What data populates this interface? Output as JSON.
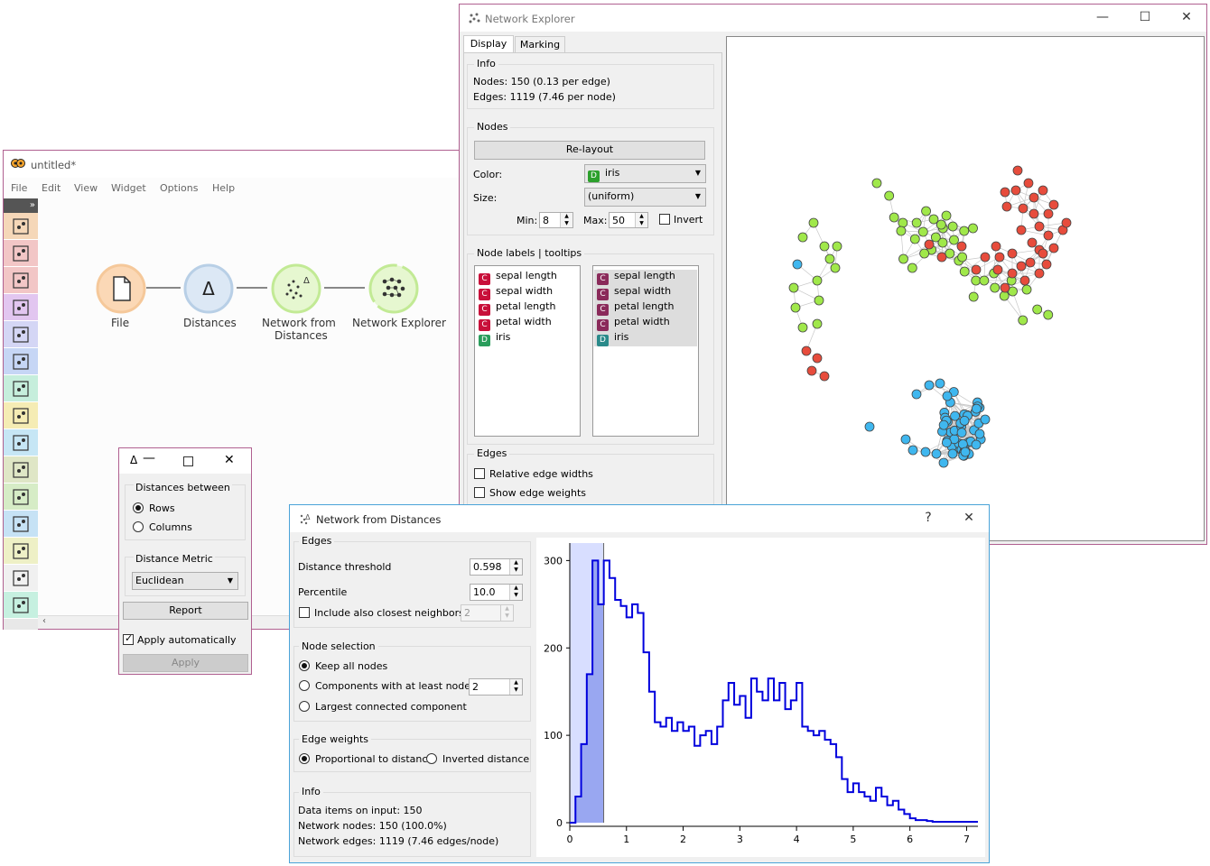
{
  "colors": {
    "red": "#e74c3c",
    "green": "#a0e84a",
    "blue": "#3fb7ef",
    "histogram": "#0000dd",
    "selection": "#c8d0ff"
  },
  "orange_window": {
    "title": "untitled*",
    "menu": [
      "File",
      "Edit",
      "View",
      "Widget",
      "Options",
      "Help"
    ],
    "toolbox_icons": [
      "table-icon",
      "scatter-icon",
      "tree-icon",
      "scatter-dense-icon",
      "heatmap-icon",
      "cluster-icon",
      "painter-icon",
      "image-icon",
      "star-icon",
      "pipeline-icon",
      "education-icon",
      "line-chart-icon",
      "transform-icon",
      "text-icon",
      "network-icon"
    ],
    "nodes": [
      {
        "label": "File",
        "icon": "file-icon"
      },
      {
        "label": "Distances",
        "icon": "delta-icon"
      },
      {
        "label_line1": "Network from",
        "label_line2": "Distances",
        "icon": "network-from-distances-icon"
      },
      {
        "label": "Network Explorer",
        "icon": "network-explorer-icon"
      }
    ]
  },
  "distances_window": {
    "title_icon": "Δ",
    "group_between": "Distances between",
    "rows": "Rows",
    "columns": "Columns",
    "group_metric": "Distance Metric",
    "metric": "Euclidean",
    "report": "Report",
    "apply_auto": "Apply automatically",
    "apply": "Apply"
  },
  "explorer_window": {
    "title": "Network Explorer",
    "tabs": [
      "Display",
      "Marking"
    ],
    "info_title": "Info",
    "nodes_info": "Nodes: 150 (0.13 per edge)",
    "edges_info": "Edges: 1119 (7.46 per node)",
    "nodes_group": "Nodes",
    "relayout": "Re-layout",
    "color_label": "Color:",
    "color_value": "iris",
    "size_label": "Size:",
    "size_value": "(uniform)",
    "min_label": "Min:",
    "min_value": "8",
    "max_label": "Max:",
    "max_value": "50",
    "invert": "Invert",
    "node_labels_title": "Node labels | tooltips",
    "attributes": [
      {
        "type": "C",
        "name": "sepal length"
      },
      {
        "type": "C",
        "name": "sepal width"
      },
      {
        "type": "C",
        "name": "petal length"
      },
      {
        "type": "C",
        "name": "petal width"
      },
      {
        "type": "D",
        "name": "iris"
      }
    ],
    "edges_group": "Edges",
    "relative_edge_widths": "Relative edge widths",
    "show_edge_weights": "Show edge weights"
  },
  "nfd_window": {
    "title": "Network from Distances",
    "help": "?",
    "close": "✕",
    "edges_group": "Edges",
    "threshold_label": "Distance threshold",
    "threshold_value": "0.598",
    "percentile_label": "Percentile",
    "percentile_value": "10.0",
    "closest_label": "Include also closest neighbors",
    "closest_value": "2",
    "node_selection": "Node selection",
    "keep_all": "Keep all nodes",
    "components": "Components with at least nodes",
    "components_value": "2",
    "largest": "Largest connected component",
    "edge_weights": "Edge weights",
    "proportional": "Proportional to distance",
    "inverted": "Inverted distance",
    "info_title": "Info",
    "info_items": "Data items on input: 150",
    "info_nodes": "Network nodes: 150 (100.0%)",
    "info_edges": "Network edges: 1119 (7.46 edges/node)"
  },
  "chart_data": {
    "type": "line",
    "x_ticks": [
      "0",
      "1",
      "2",
      "3",
      "4",
      "5",
      "6",
      "7"
    ],
    "y_ticks": [
      "0",
      "100",
      "200",
      "300"
    ],
    "xlim": [
      0,
      7.2
    ],
    "ylim": [
      0,
      320
    ],
    "threshold": 0.598,
    "x": [
      0,
      0.1,
      0.2,
      0.3,
      0.4,
      0.5,
      0.6,
      0.7,
      0.8,
      0.9,
      1.0,
      1.1,
      1.2,
      1.3,
      1.4,
      1.5,
      1.6,
      1.7,
      1.8,
      1.9,
      2.0,
      2.1,
      2.2,
      2.3,
      2.4,
      2.5,
      2.6,
      2.7,
      2.8,
      2.9,
      3.0,
      3.1,
      3.2,
      3.3,
      3.4,
      3.5,
      3.6,
      3.7,
      3.8,
      3.9,
      4.0,
      4.1,
      4.2,
      4.3,
      4.4,
      4.5,
      4.6,
      4.7,
      4.8,
      4.9,
      5.0,
      5.1,
      5.2,
      5.3,
      5.4,
      5.5,
      5.6,
      5.7,
      5.8,
      5.9,
      6.0,
      6.1,
      6.2,
      6.3,
      6.4,
      6.5,
      6.6,
      6.7,
      6.8,
      6.9,
      7.0,
      7.1
    ],
    "y": [
      0,
      30,
      90,
      170,
      300,
      250,
      300,
      280,
      255,
      248,
      235,
      250,
      240,
      195,
      150,
      115,
      110,
      120,
      105,
      115,
      105,
      110,
      88,
      100,
      105,
      90,
      110,
      140,
      160,
      135,
      145,
      120,
      165,
      150,
      140,
      165,
      140,
      160,
      130,
      140,
      160,
      110,
      105,
      100,
      105,
      95,
      90,
      75,
      50,
      35,
      45,
      35,
      30,
      25,
      40,
      30,
      20,
      25,
      15,
      10,
      5,
      3,
      3,
      2,
      1,
      1,
      1,
      1,
      1,
      1,
      1,
      1
    ]
  }
}
